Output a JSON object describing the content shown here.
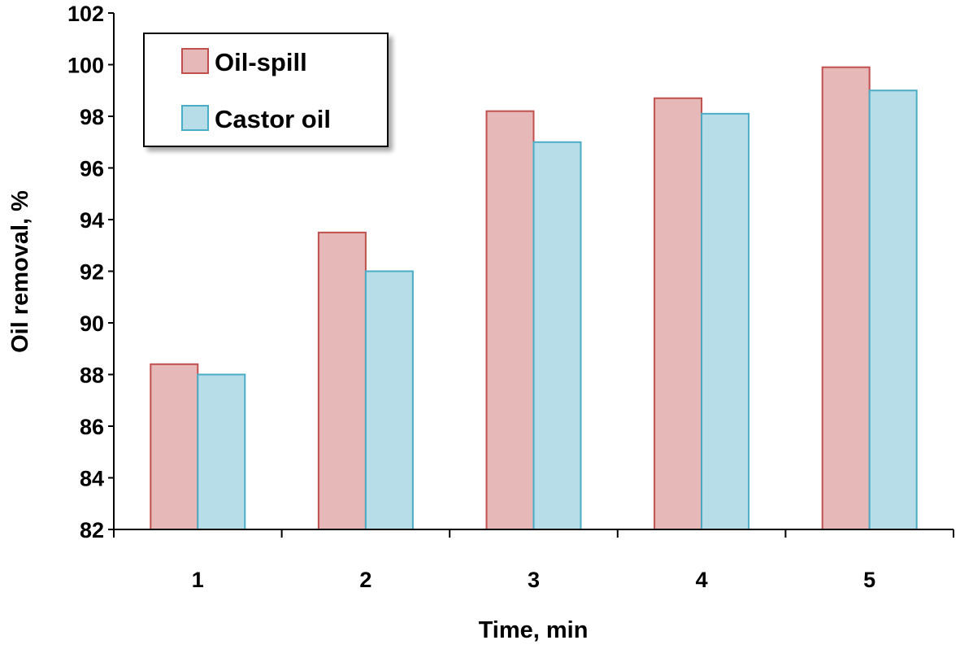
{
  "chart_data": {
    "type": "bar",
    "categories": [
      "1",
      "2",
      "3",
      "4",
      "5"
    ],
    "series": [
      {
        "name": "Oil-spill",
        "values": [
          88.4,
          93.5,
          98.2,
          98.7,
          99.9
        ],
        "fill": "#e6b8b7",
        "stroke": "#c0504d"
      },
      {
        "name": "Castor oil",
        "values": [
          88.0,
          92.0,
          97.0,
          98.1,
          99.0
        ],
        "fill": "#b7dde8",
        "stroke": "#4bacc6"
      }
    ],
    "xlabel": "Time, min",
    "ylabel": "Oil removal, %",
    "ylim": [
      82,
      102
    ],
    "yticks": [
      82,
      84,
      86,
      88,
      90,
      92,
      94,
      96,
      98,
      100,
      102
    ],
    "grid": false,
    "legend_position": "top-left"
  }
}
